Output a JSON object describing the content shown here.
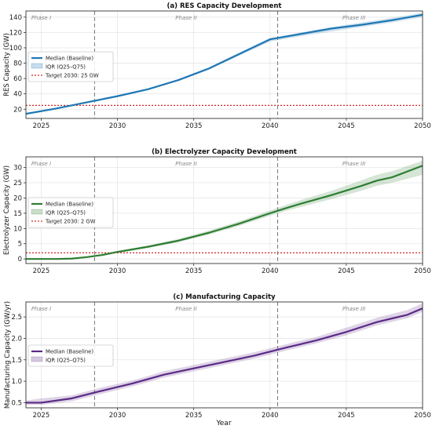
{
  "colors": {
    "res": "#1f77b4",
    "electrolyzer": "#2e7d32",
    "manufacturing": "#5b2a86",
    "target": "#d62728",
    "phase_line": "#777777"
  },
  "xlabel": "Year",
  "chart_data": [
    {
      "type": "line",
      "title": "(a) RES Capacity Development",
      "ylabel": "RES Capacity (GW)",
      "xlim": [
        2024,
        2050
      ],
      "ylim": [
        8,
        148
      ],
      "yticks": [
        20,
        40,
        60,
        80,
        100,
        120,
        140
      ],
      "x_ticks": [
        2025,
        2030,
        2035,
        2040,
        2045,
        2050
      ],
      "grid": true,
      "legend_position": "center-left",
      "phase_lines": [
        2028.5,
        2040.5
      ],
      "phases": [
        {
          "label": "Phase I",
          "x": 2025
        },
        {
          "label": "Phase II",
          "x": 2034.5
        },
        {
          "label": "Phase III",
          "x": 2045.5
        }
      ],
      "target": {
        "label": "Target 2030: 25 GW",
        "value": 25
      },
      "series": [
        {
          "name": "Median (Baseline)",
          "x": [
            2024,
            2026,
            2028,
            2030,
            2032,
            2034,
            2036,
            2038,
            2040,
            2042,
            2044,
            2046,
            2048,
            2050
          ],
          "values": [
            14,
            21,
            29,
            37,
            46,
            58,
            73,
            92,
            111,
            118,
            125,
            130,
            136,
            143
          ]
        },
        {
          "name": "IQR (Q25–Q75)",
          "x": [
            2024,
            2026,
            2028,
            2030,
            2032,
            2034,
            2036,
            2038,
            2040,
            2042,
            2044,
            2046,
            2048,
            2050
          ],
          "lower": [
            13,
            20,
            28,
            36,
            45,
            57,
            72,
            90,
            108,
            115,
            121,
            127,
            133,
            140
          ],
          "upper": [
            15,
            22,
            30,
            38,
            47,
            59,
            75,
            94,
            113,
            120,
            127,
            133,
            139,
            146
          ]
        }
      ]
    },
    {
      "type": "line",
      "title": "(b) Electrolyzer Capacity Development",
      "ylabel": "Electrolyzer Capacity (GW)",
      "xlim": [
        2024,
        2050
      ],
      "ylim": [
        -1.5,
        33.5
      ],
      "yticks": [
        0,
        5,
        10,
        15,
        20,
        25,
        30
      ],
      "x_ticks": [
        2025,
        2030,
        2035,
        2040,
        2045,
        2050
      ],
      "grid": true,
      "legend_position": "center-left",
      "phase_lines": [
        2028.5,
        2040.5
      ],
      "phases": [
        {
          "label": "Phase I",
          "x": 2025
        },
        {
          "label": "Phase II",
          "x": 2034.5
        },
        {
          "label": "Phase III",
          "x": 2045.5
        }
      ],
      "target": {
        "label": "Target 2030: 2 GW",
        "value": 2
      },
      "series": [
        {
          "name": "Median (Baseline)",
          "x": [
            2024,
            2026,
            2027,
            2028,
            2029,
            2030,
            2032,
            2034,
            2036,
            2038,
            2040,
            2041,
            2042,
            2044,
            2046,
            2047,
            2048,
            2050
          ],
          "values": [
            0,
            0,
            0.1,
            0.6,
            1.3,
            2.3,
            4.0,
            6.0,
            8.6,
            11.6,
            15.0,
            16.6,
            18.1,
            20.9,
            24.0,
            25.7,
            26.8,
            30.6
          ]
        },
        {
          "name": "IQR (Q25–Q75)",
          "x": [
            2024,
            2026,
            2027,
            2028,
            2029,
            2030,
            2032,
            2034,
            2036,
            2038,
            2040,
            2041,
            2042,
            2044,
            2046,
            2047,
            2048,
            2050
          ],
          "lower": [
            0,
            0,
            0.1,
            0.5,
            1.1,
            2.0,
            3.6,
            5.5,
            8.0,
            10.9,
            14.2,
            15.7,
            17.0,
            19.6,
            22.4,
            24.0,
            25.0,
            27.6
          ],
          "upper": [
            0,
            0.1,
            0.2,
            0.7,
            1.5,
            2.6,
            4.4,
            6.6,
            9.3,
            12.4,
            15.9,
            17.6,
            19.3,
            22.3,
            25.8,
            27.6,
            28.8,
            32.2
          ]
        }
      ]
    },
    {
      "type": "line",
      "title": "(c) Manufacturing Capacity",
      "ylabel": "Manufacturing Capacity (GW/yr)",
      "xlabel": "Year",
      "xlim": [
        2024,
        2050
      ],
      "ylim": [
        0.38,
        2.85
      ],
      "yticks": [
        0.5,
        1.0,
        1.5,
        2.0,
        2.5
      ],
      "ytick_labels": [
        "0.5",
        "1.0",
        "1.5",
        "2.0",
        "2.5"
      ],
      "x_ticks": [
        2025,
        2030,
        2035,
        2040,
        2045,
        2050
      ],
      "grid": true,
      "legend_position": "center-left",
      "phase_lines": [
        2028.5,
        2040.5
      ],
      "phases": [
        {
          "label": "Phase I",
          "x": 2025
        },
        {
          "label": "Phase II",
          "x": 2034.5
        },
        {
          "label": "Phase III",
          "x": 2045.5
        }
      ],
      "series": [
        {
          "name": "Median (Baseline)",
          "x": [
            2024,
            2025,
            2027,
            2029,
            2031,
            2032,
            2033,
            2035,
            2037,
            2039,
            2041,
            2043,
            2045,
            2047,
            2049,
            2050
          ],
          "values": [
            0.5,
            0.5,
            0.6,
            0.78,
            0.95,
            1.05,
            1.15,
            1.3,
            1.45,
            1.6,
            1.78,
            1.95,
            2.15,
            2.38,
            2.55,
            2.7
          ]
        },
        {
          "name": "IQR (Q25–Q75)",
          "x": [
            2024,
            2025,
            2027,
            2029,
            2031,
            2032,
            2033,
            2035,
            2037,
            2039,
            2041,
            2043,
            2045,
            2047,
            2049,
            2050
          ],
          "lower": [
            0.45,
            0.45,
            0.53,
            0.71,
            0.88,
            0.98,
            1.08,
            1.23,
            1.38,
            1.53,
            1.71,
            1.88,
            2.07,
            2.3,
            2.47,
            2.62
          ],
          "upper": [
            0.55,
            0.6,
            0.67,
            0.86,
            1.02,
            1.12,
            1.23,
            1.38,
            1.53,
            1.68,
            1.86,
            2.03,
            2.25,
            2.48,
            2.66,
            2.82
          ]
        }
      ]
    }
  ]
}
